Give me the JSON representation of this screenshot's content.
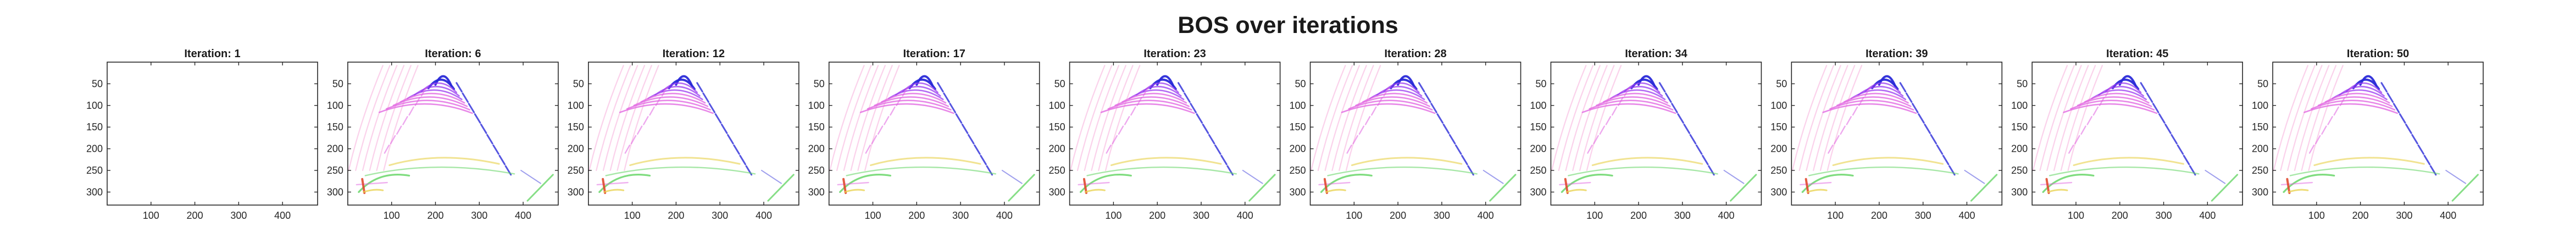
{
  "figure": {
    "title": "BOS over iterations",
    "background": "#ffffff"
  },
  "chart_data": {
    "type": "heatmap",
    "title": "BOS over iterations",
    "subplots": [
      {
        "title": "Iteration: 1",
        "iteration": 1,
        "empty": true
      },
      {
        "title": "Iteration: 6",
        "iteration": 6,
        "empty": false
      },
      {
        "title": "Iteration: 12",
        "iteration": 12,
        "empty": false
      },
      {
        "title": "Iteration: 17",
        "iteration": 17,
        "empty": false
      },
      {
        "title": "Iteration: 23",
        "iteration": 23,
        "empty": false
      },
      {
        "title": "Iteration: 28",
        "iteration": 28,
        "empty": false
      },
      {
        "title": "Iteration: 34",
        "iteration": 34,
        "empty": false
      },
      {
        "title": "Iteration: 39",
        "iteration": 39,
        "empty": false
      },
      {
        "title": "Iteration: 45",
        "iteration": 45,
        "empty": false
      },
      {
        "title": "Iteration: 50",
        "iteration": 50,
        "empty": false
      }
    ],
    "xlim": [
      0,
      480
    ],
    "ylim": [
      330,
      0
    ],
    "xticks": [
      100,
      200,
      300,
      400
    ],
    "yticks": [
      50,
      100,
      150,
      200,
      250,
      300
    ],
    "xticklabels": [
      "100",
      "200",
      "300",
      "400"
    ],
    "yticklabels": [
      "50",
      "100",
      "150",
      "200",
      "250",
      "300"
    ],
    "grid": false,
    "colors": {
      "blue": "#2a2ad8",
      "violet": "#9a3af0",
      "magenta": "#e060e0",
      "pink": "#f7a6d8",
      "green": "#5fd35f",
      "yellow": "#e8d04a",
      "red": "#e04a30",
      "axis": "#262626"
    }
  }
}
